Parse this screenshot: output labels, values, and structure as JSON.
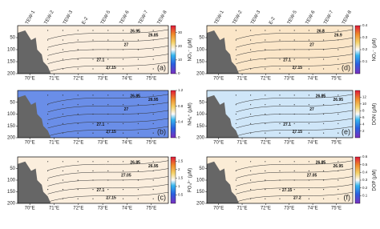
{
  "chart_data": [
    {
      "type": "heatmap",
      "panel": "(a)",
      "colorbar_label": "NO₃⁻ (µM)",
      "clim": [
        0,
        35
      ],
      "cticks": [
        0,
        10,
        20,
        30
      ],
      "xlim": [
        69.5,
        75.7
      ],
      "xticks": [
        {
          "value": 70,
          "label": "70°E"
        },
        {
          "value": 71,
          "label": "71°E"
        },
        {
          "value": 72,
          "label": "72°E"
        },
        {
          "value": 73,
          "label": "73°E"
        },
        {
          "value": 74,
          "label": "74°E"
        },
        {
          "value": 75,
          "label": "75°E"
        }
      ],
      "ylim": [
        0,
        200
      ],
      "yticks": [
        50,
        100,
        150,
        200
      ],
      "y_inverted": true,
      "stations": [
        "TEW-1",
        "TEW-2",
        "TEW-3",
        "E-2",
        "TEW-5",
        "TEW-6",
        "TEW-7",
        "TEW-8"
      ],
      "contour_labels": [
        "26.95",
        "26.85",
        "27",
        "27.1",
        "27.15"
      ]
    },
    {
      "type": "heatmap",
      "panel": "(b)",
      "colorbar_label": "NH₄⁺ (µM)",
      "clim": [
        0,
        1.2
      ],
      "cticks": [
        0,
        0.4,
        0.8,
        1.2
      ],
      "xlim": [
        69.5,
        75.7
      ],
      "xticks": [
        {
          "value": 70,
          "label": "70°E"
        },
        {
          "value": 71,
          "label": "71°E"
        },
        {
          "value": 72,
          "label": "72°E"
        },
        {
          "value": 73,
          "label": "73°E"
        },
        {
          "value": 74,
          "label": "74°E"
        },
        {
          "value": 75,
          "label": "75°E"
        }
      ],
      "ylim": [
        0,
        200
      ],
      "yticks": [
        50,
        100,
        150,
        200
      ],
      "y_inverted": true,
      "contour_labels": [
        "26.85",
        "26.95",
        "27",
        "27.1",
        "27.15"
      ]
    },
    {
      "type": "heatmap",
      "panel": "(c)",
      "colorbar_label": "PO₄³⁻ (µM)",
      "clim": [
        0,
        2.75
      ],
      "cticks": [
        0.5,
        1,
        1.5,
        2,
        2.5
      ],
      "xlim": [
        69.5,
        75.7
      ],
      "xticks": [
        {
          "value": 70,
          "label": "70°E"
        },
        {
          "value": 71,
          "label": "71°E"
        },
        {
          "value": 72,
          "label": "72°E"
        },
        {
          "value": 73,
          "label": "73°E"
        },
        {
          "value": 74,
          "label": "74°E"
        },
        {
          "value": 75,
          "label": "75°E"
        }
      ],
      "ylim": [
        0,
        200
      ],
      "yticks": [
        50,
        100,
        150,
        200
      ],
      "y_inverted": true,
      "contour_labels": [
        "26.85",
        "26.95",
        "27.05",
        "27.1",
        "27.15"
      ]
    },
    {
      "type": "heatmap",
      "panel": "(d)",
      "colorbar_label": "NO₂⁻ (µM)",
      "clim": [
        0,
        0.4
      ],
      "cticks": [
        0.1,
        0.2,
        0.3,
        0.4
      ],
      "xlim": [
        69.5,
        75.7
      ],
      "xticks": [
        {
          "value": 70,
          "label": "70°E"
        },
        {
          "value": 71,
          "label": "71°E"
        },
        {
          "value": 72,
          "label": "72°E"
        },
        {
          "value": 73,
          "label": "73°E"
        },
        {
          "value": 74,
          "label": "74°E"
        },
        {
          "value": 75,
          "label": "75°E"
        }
      ],
      "ylim": [
        0,
        200
      ],
      "yticks": [
        50,
        100,
        150,
        200
      ],
      "y_inverted": true,
      "stations": [
        "TEW-1",
        "TEW-2",
        "TEW-3",
        "E-2",
        "TEW-5",
        "TEW-6",
        "TEW-7",
        "TEW-8"
      ],
      "contour_labels": [
        "26.8",
        "26.9",
        "27",
        "27.1",
        "27.15"
      ]
    },
    {
      "type": "heatmap",
      "panel": "(e)",
      "colorbar_label": "DON (µM)",
      "clim": [
        0,
        14
      ],
      "cticks": [
        2,
        4,
        6,
        8,
        10,
        12
      ],
      "xlim": [
        69.5,
        75.7
      ],
      "xticks": [
        {
          "value": 70,
          "label": "70°E"
        },
        {
          "value": 71,
          "label": "71°E"
        },
        {
          "value": 72,
          "label": "72°E"
        },
        {
          "value": 73,
          "label": "73°E"
        },
        {
          "value": 74,
          "label": "74°E"
        },
        {
          "value": 75,
          "label": "75°E"
        }
      ],
      "ylim": [
        0,
        200
      ],
      "yticks": [
        50,
        100,
        150,
        200
      ],
      "y_inverted": true,
      "contour_labels": [
        "26.85",
        "26.95",
        "27",
        "27.1",
        "27.15"
      ]
    },
    {
      "type": "heatmap",
      "panel": "(f)",
      "colorbar_label": "DOP (µM)",
      "clim": [
        0,
        0.6
      ],
      "cticks": [
        0.1,
        0.2,
        0.3,
        0.4,
        0.5,
        0.6
      ],
      "xlim": [
        69.5,
        75.7
      ],
      "xticks": [
        {
          "value": 70,
          "label": "70°E"
        },
        {
          "value": 71,
          "label": "71°E"
        },
        {
          "value": 72,
          "label": "72°E"
        },
        {
          "value": 73,
          "label": "73°E"
        },
        {
          "value": 74,
          "label": "74°E"
        },
        {
          "value": 75,
          "label": "75°E"
        }
      ],
      "ylim": [
        0,
        200
      ],
      "yticks": [
        50,
        100,
        150,
        200
      ],
      "y_inverted": true,
      "contour_labels": [
        "26.85",
        "26.95",
        "27.05",
        "27.15",
        "27.2"
      ]
    }
  ]
}
